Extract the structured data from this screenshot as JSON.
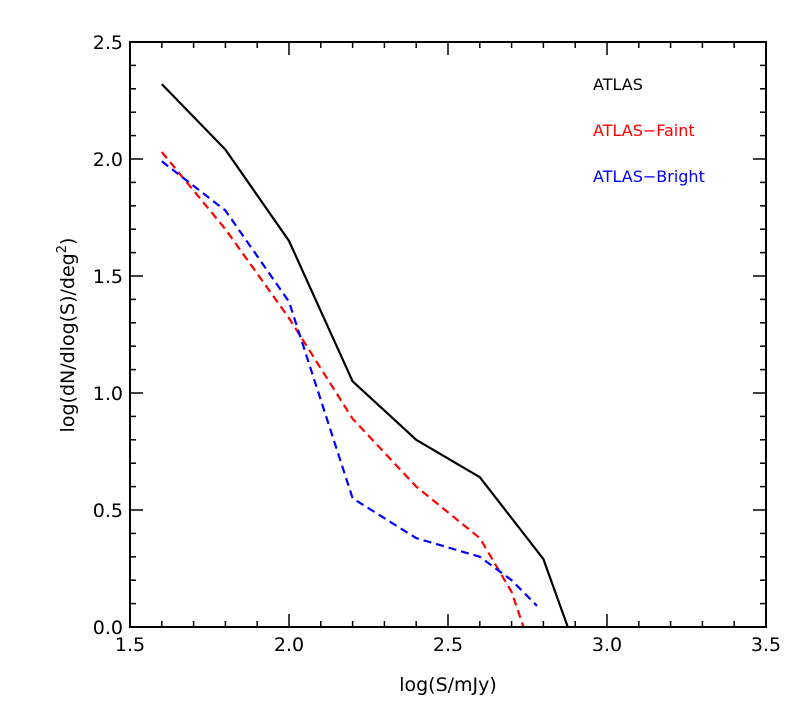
{
  "chart_data": {
    "type": "line",
    "title": "",
    "xlabel": "log(S/mJy)",
    "ylabel_main": "log(dN/dlog(S)/deg",
    "ylabel_sup": "2",
    "ylabel_tail": ")",
    "xlim": [
      1.5,
      3.5
    ],
    "ylim": [
      0.0,
      2.5
    ],
    "xticks": [
      1.5,
      2.0,
      2.5,
      3.0,
      3.5
    ],
    "xtick_labels": [
      "1.5",
      "2.0",
      "2.5",
      "3.0",
      "3.5"
    ],
    "yticks": [
      0.0,
      0.5,
      1.0,
      1.5,
      2.0,
      2.5
    ],
    "ytick_labels": [
      "0.0",
      "0.5",
      "1.0",
      "1.5",
      "2.0",
      "2.5"
    ],
    "grid": false,
    "legend_position": "top-right",
    "series": [
      {
        "name": "ATLAS",
        "color": "#000000",
        "style": "solid",
        "x": [
          1.6,
          1.8,
          2.0,
          2.2,
          2.4,
          2.6,
          2.8,
          2.89
        ],
        "y": [
          2.32,
          2.04,
          1.65,
          1.05,
          0.8,
          0.64,
          0.29,
          -0.05
        ]
      },
      {
        "name": "ATLAS−Faint",
        "color": "#ff0000",
        "style": "dashed",
        "x": [
          1.6,
          1.8,
          2.0,
          2.2,
          2.4,
          2.6,
          2.7,
          2.75
        ],
        "y": [
          2.03,
          1.7,
          1.32,
          0.89,
          0.6,
          0.38,
          0.15,
          -0.05
        ]
      },
      {
        "name": "ATLAS−Bright",
        "color": "#0000ff",
        "style": "dashed",
        "x": [
          1.6,
          1.8,
          2.0,
          2.2,
          2.4,
          2.6,
          2.7,
          2.78
        ],
        "y": [
          1.99,
          1.78,
          1.39,
          0.55,
          0.38,
          0.3,
          0.2,
          0.09
        ]
      }
    ]
  }
}
